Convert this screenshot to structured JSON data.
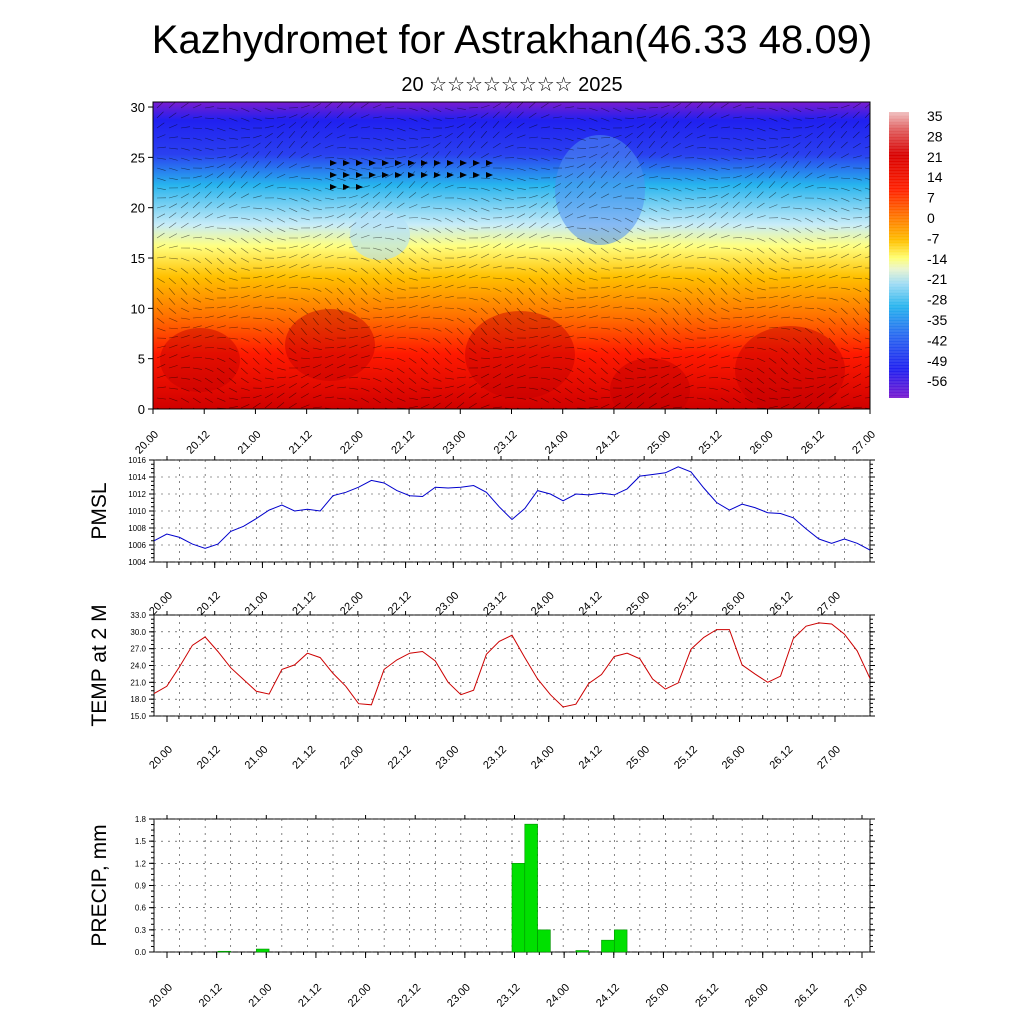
{
  "title": "Kazhydromet for Astrakhan(46.33 48.09)",
  "subtitle": "20 ☆☆☆☆☆☆☆☆ 2025",
  "chart_data": [
    {
      "type": "heatmap",
      "title": "Kazhydromet for Astrakhan(46.33 48.09)",
      "subtitle": "20 ☆☆☆☆☆☆☆☆ 2025",
      "x_ticks": [
        "20.00",
        "20.12",
        "21.00",
        "21.12",
        "22.00",
        "22.12",
        "23.00",
        "23.12",
        "24.00",
        "24.12",
        "25.00",
        "25.12",
        "26.00",
        "26.12",
        "27.00"
      ],
      "y_ticks": [
        "0",
        "5",
        "10",
        "15",
        "20",
        "25",
        "30"
      ],
      "ylim": [
        0,
        30.5
      ],
      "colorbar_labels": [
        "35",
        "28",
        "21",
        "14",
        "7",
        "0",
        "-7",
        "-14",
        "-21",
        "-28",
        "-35",
        "-42",
        "-49",
        "-56"
      ],
      "colorbar_range": [
        -60,
        38
      ],
      "colors": [
        "#7a1ccf",
        "#2020f0",
        "#4a80f0",
        "#27b4ee",
        "#b0e4f4",
        "#ffff70",
        "#ffc000",
        "#ff7a00",
        "#ff1a00",
        "#d80000",
        "#e87070",
        "#f0b4b4"
      ]
    },
    {
      "type": "line",
      "ylabel": "PMSL",
      "x_ticks": [
        "20.00",
        "20.12",
        "21.00",
        "21.12",
        "22.00",
        "22.12",
        "23.00",
        "23.12",
        "24.00",
        "24.12",
        "25.00",
        "25.12",
        "26.00",
        "26.12",
        "27.00"
      ],
      "y_ticks": [
        "1004",
        "1006",
        "1008",
        "1010",
        "1012",
        "1014",
        "1016"
      ],
      "ylim": [
        1004,
        1016
      ],
      "color": "#0000cc",
      "values": [
        1006.5,
        1007.3,
        1006.9,
        1006.1,
        1005.6,
        1006.1,
        1007.6,
        1008.2,
        1009.1,
        1010.1,
        1010.7,
        1010.0,
        1010.2,
        1010.0,
        1011.8,
        1012.2,
        1012.8,
        1013.6,
        1013.3,
        1012.4,
        1011.8,
        1011.7,
        1012.8,
        1012.7,
        1012.8,
        1013.0,
        1012.2,
        1010.5,
        1009.0,
        1010.3,
        1012.4,
        1012.0,
        1011.2,
        1012.0,
        1011.9,
        1012.1,
        1011.9,
        1012.6,
        1014.1,
        1014.3,
        1014.5,
        1015.2,
        1014.6,
        1012.7,
        1011.0,
        1010.1,
        1010.8,
        1010.4,
        1009.8,
        1009.7,
        1009.2,
        1007.9,
        1006.7,
        1006.2,
        1006.7,
        1006.2,
        1005.4
      ]
    },
    {
      "type": "line",
      "ylabel": "TEMP at 2 M",
      "x_ticks": [
        "20.00",
        "20.12",
        "21.00",
        "21.12",
        "22.00",
        "22.12",
        "23.00",
        "23.12",
        "24.00",
        "24.12",
        "25.00",
        "25.12",
        "26.00",
        "26.12",
        "27.00"
      ],
      "y_ticks": [
        "15.0",
        "18.0",
        "21.0",
        "24.0",
        "27.0",
        "30.0",
        "33.0"
      ],
      "ylim": [
        15,
        33
      ],
      "color": "#cc0000",
      "values": [
        19.0,
        20.3,
        23.8,
        27.6,
        29.1,
        26.5,
        23.6,
        21.5,
        19.4,
        18.9,
        23.3,
        24.1,
        26.2,
        25.4,
        22.6,
        20.3,
        17.2,
        17.0,
        23.3,
        25.0,
        26.2,
        26.5,
        24.8,
        21.0,
        18.8,
        19.6,
        26.0,
        28.3,
        29.4,
        25.4,
        21.6,
        18.8,
        16.6,
        17.1,
        20.8,
        22.4,
        25.6,
        26.2,
        25.2,
        21.6,
        19.8,
        20.9,
        26.9,
        29.0,
        30.4,
        30.4,
        24.1,
        22.5,
        21.0,
        22.1,
        28.8,
        31.0,
        31.6,
        31.4,
        29.6,
        26.6,
        21.7
      ]
    },
    {
      "type": "bar",
      "ylabel": "PRECIP, mm",
      "x_ticks": [
        "20.00",
        "20.12",
        "21.00",
        "21.12",
        "22.00",
        "22.12",
        "23.00",
        "23.12",
        "24.00",
        "24.12",
        "25.00",
        "25.12",
        "26.00",
        "26.12",
        "27.00"
      ],
      "y_ticks": [
        "0.0",
        "0.3",
        "0.6",
        "0.9",
        "1.2",
        "1.5",
        "1.8"
      ],
      "ylim": [
        0,
        1.8
      ],
      "color": "#00e000",
      "values": [
        0,
        0,
        0,
        0,
        0,
        0.01,
        0,
        0,
        0.04,
        0,
        0,
        0,
        0,
        0,
        0,
        0,
        0,
        0,
        0,
        0,
        0,
        0,
        0,
        0,
        0,
        0,
        0,
        0,
        1.2,
        1.73,
        0.3,
        0,
        0,
        0.02,
        0,
        0.16,
        0.3,
        0,
        0,
        0,
        0,
        0,
        0,
        0,
        0,
        0,
        0,
        0,
        0,
        0,
        0,
        0,
        0,
        0,
        0,
        0
      ]
    }
  ]
}
